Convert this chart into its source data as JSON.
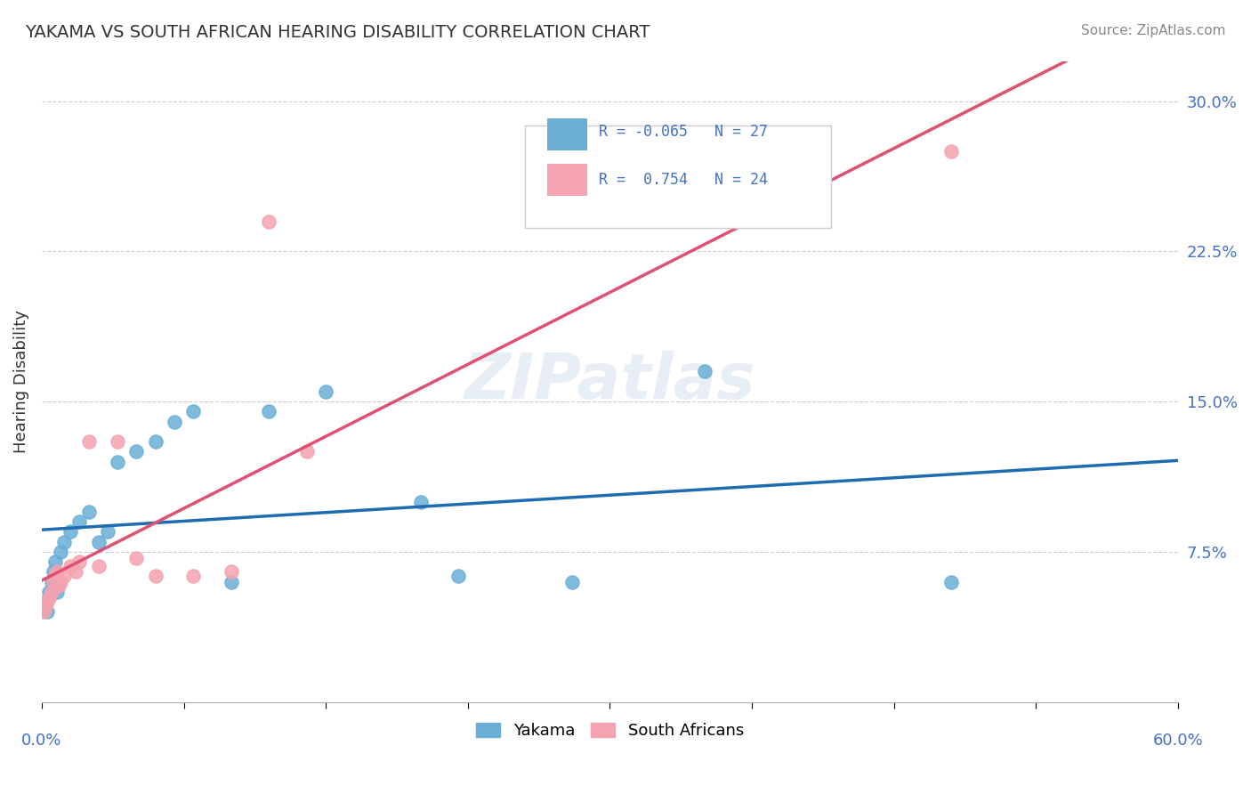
{
  "title": "YAKAMA VS SOUTH AFRICAN HEARING DISABILITY CORRELATION CHART",
  "source": "Source: ZipAtlas.com",
  "ylabel": "Hearing Disability",
  "xlim": [
    0.0,
    0.6
  ],
  "ylim": [
    0.0,
    0.32
  ],
  "yticks": [
    0.075,
    0.15,
    0.225,
    0.3
  ],
  "ytick_labels": [
    "7.5%",
    "15.0%",
    "22.5%",
    "30.0%"
  ],
  "blue_color": "#6aaed6",
  "pink_color": "#f4a3b0",
  "line_blue": "#1f6bb0",
  "line_pink": "#e05070",
  "watermark": "ZIPatlas",
  "yakama_x": [
    0.002,
    0.003,
    0.004,
    0.005,
    0.006,
    0.007,
    0.008,
    0.01,
    0.012,
    0.015,
    0.02,
    0.025,
    0.03,
    0.035,
    0.04,
    0.05,
    0.06,
    0.07,
    0.08,
    0.1,
    0.12,
    0.15,
    0.2,
    0.22,
    0.28,
    0.35,
    0.48
  ],
  "yakama_y": [
    0.05,
    0.045,
    0.055,
    0.06,
    0.065,
    0.07,
    0.055,
    0.075,
    0.08,
    0.085,
    0.09,
    0.095,
    0.08,
    0.085,
    0.12,
    0.125,
    0.13,
    0.14,
    0.145,
    0.06,
    0.145,
    0.155,
    0.1,
    0.063,
    0.06,
    0.165,
    0.06
  ],
  "sa_x": [
    0.001,
    0.002,
    0.003,
    0.004,
    0.005,
    0.006,
    0.007,
    0.008,
    0.009,
    0.01,
    0.012,
    0.015,
    0.018,
    0.02,
    0.025,
    0.03,
    0.04,
    0.05,
    0.06,
    0.08,
    0.1,
    0.12,
    0.14,
    0.48
  ],
  "sa_y": [
    0.045,
    0.048,
    0.05,
    0.052,
    0.055,
    0.06,
    0.063,
    0.065,
    0.058,
    0.06,
    0.063,
    0.068,
    0.065,
    0.07,
    0.13,
    0.068,
    0.13,
    0.072,
    0.063,
    0.063,
    0.065,
    0.24,
    0.125,
    0.275
  ],
  "background_color": "#ffffff",
  "grid_color": "#cccccc"
}
